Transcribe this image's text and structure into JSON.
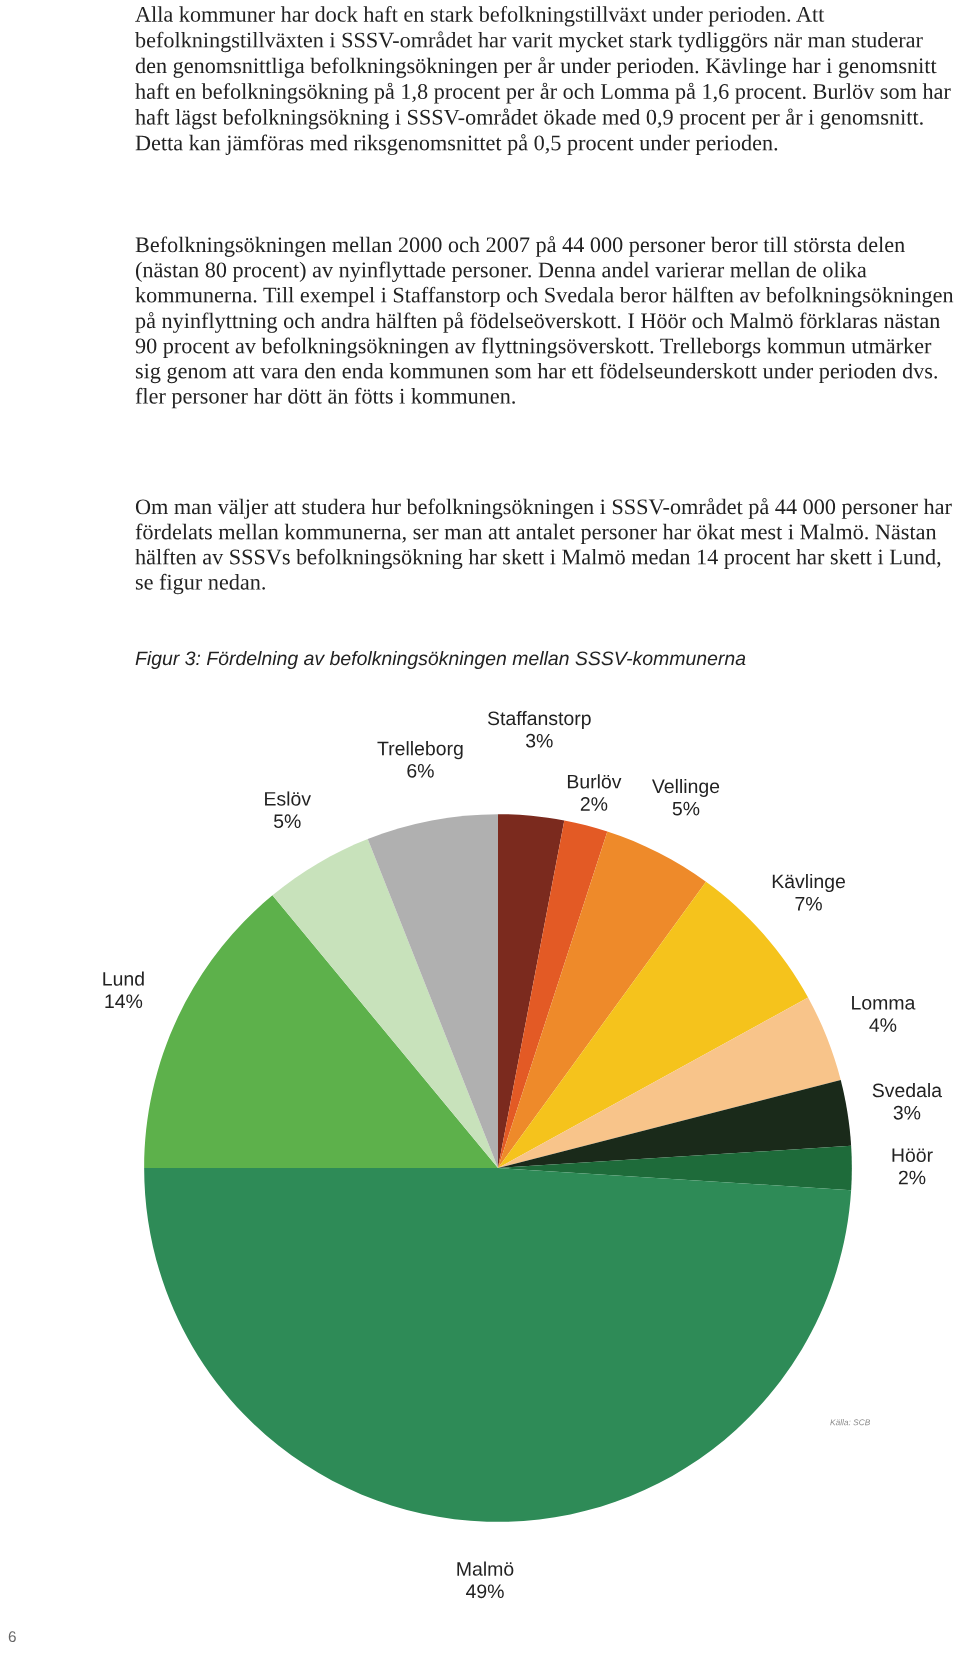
{
  "chart_data": {
    "type": "pie",
    "title": "Figur 3: Fördelning av befolkningsökningen mellan SSSV-kommunerna",
    "categories": [
      "Staffanstorp",
      "Burlöv",
      "Vellinge",
      "Kävlinge",
      "Lomma",
      "Svedala",
      "Höör",
      "Malmö",
      "Lund",
      "Eslöv",
      "Trelleborg"
    ],
    "values": [
      3,
      2,
      5,
      7,
      4,
      3,
      2,
      49,
      14,
      5,
      6
    ],
    "value_labels": [
      "3%",
      "2%",
      "5%",
      "7%",
      "4%",
      "3%",
      "2%",
      "49%",
      "14%",
      "5%",
      "6%"
    ],
    "colors": [
      "#7b2a1e",
      "#e35a25",
      "#ee8a2a",
      "#f5c31c",
      "#f8c48a",
      "#1a2a1a",
      "#1e6b3a",
      "#2e8b57",
      "#5db14b",
      "#c8e2bb",
      "#b0b0b0"
    ],
    "annotations": [
      "Alla kommuner har dock haft en stark befolkningstillväxt under perioden. Att befolkningstillväxten i SSSV-området har varit mycket stark tydliggörs när man studerar den genomsnittliga befolkningsökningen per år under perioden. Kävlinge har i genomsnitt haft en befolkningsökning på 1,8 procent per år och Lomma på 1,6 procent. Burlöv som har haft lägst befolkningsökning i SSSV-området ökade med 0,9 procent per år i genomsnitt. Detta kan jämföras med riksgenomsnittet på 0,5 procent under perioden.",
      "Befolkningsökningen mellan 2000 och 2007 på 44 000 personer beror till största delen (nästan 80 procent) av nyinflyttade personer. Denna andel varierar mellan de olika kommunerna. Till exempel i Staffanstorp och Svedala beror hälften av befolkningsökningen på nyinflyttning och andra hälften på födelseöverskott. I Höör och Malmö förklaras nästan 90 procent av befolkningsökningen av flyttningsöverskott. Trelleborgs kommun utmärker sig genom att vara den enda kommunen som har ett födelseunderskott under perioden dvs. fler personer har dött än fötts i kommunen.",
      "Om man väljer att studera hur befolkningsökningen i SSSV-området på 44 000 personer har fördelats mellan kommunerna, ser man att antalet personer har ökat mest i Malmö. Nästan hälften av SSSVs befolkningsökning har skett i Malmö medan 14 procent har skett i Lund, se figur nedan.",
      "Källa: SCB",
      "6"
    ]
  }
}
